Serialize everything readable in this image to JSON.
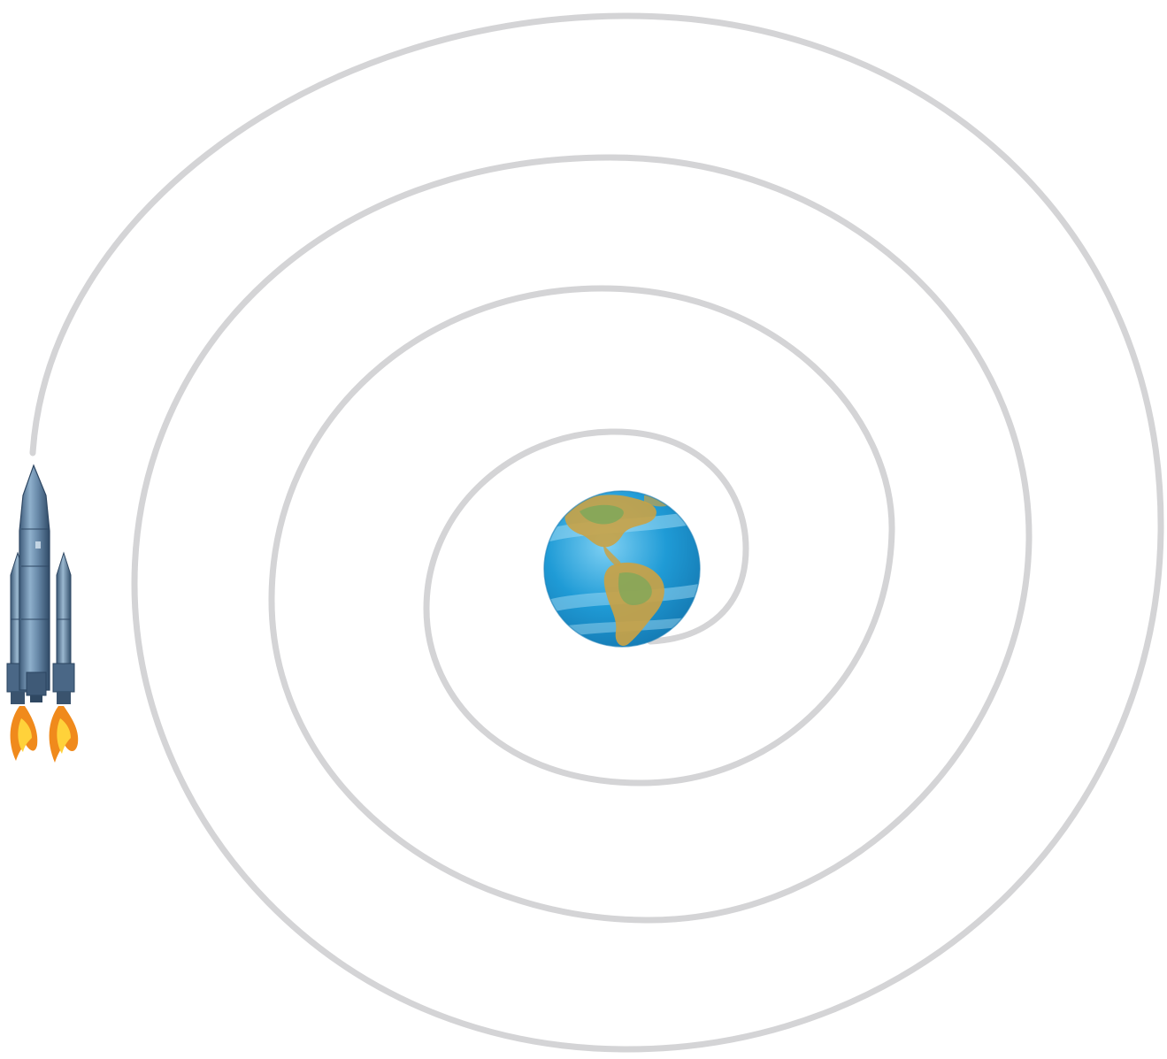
{
  "scene": {
    "background": "#ffffff",
    "path_color": "#d4d4d6",
    "icons": {
      "rocket": "rocket-icon",
      "earth": "earth-icon"
    },
    "colors": {
      "ocean": "#1e9ad6",
      "ocean_light": "#8fd3f2",
      "land": "#c9a245",
      "land_green": "#7fa85a",
      "rocket_body": "#6f8fae",
      "rocket_dark": "#3d5a78",
      "flame_outer": "#f08a1c",
      "flame_inner": "#ffd23a"
    }
  }
}
